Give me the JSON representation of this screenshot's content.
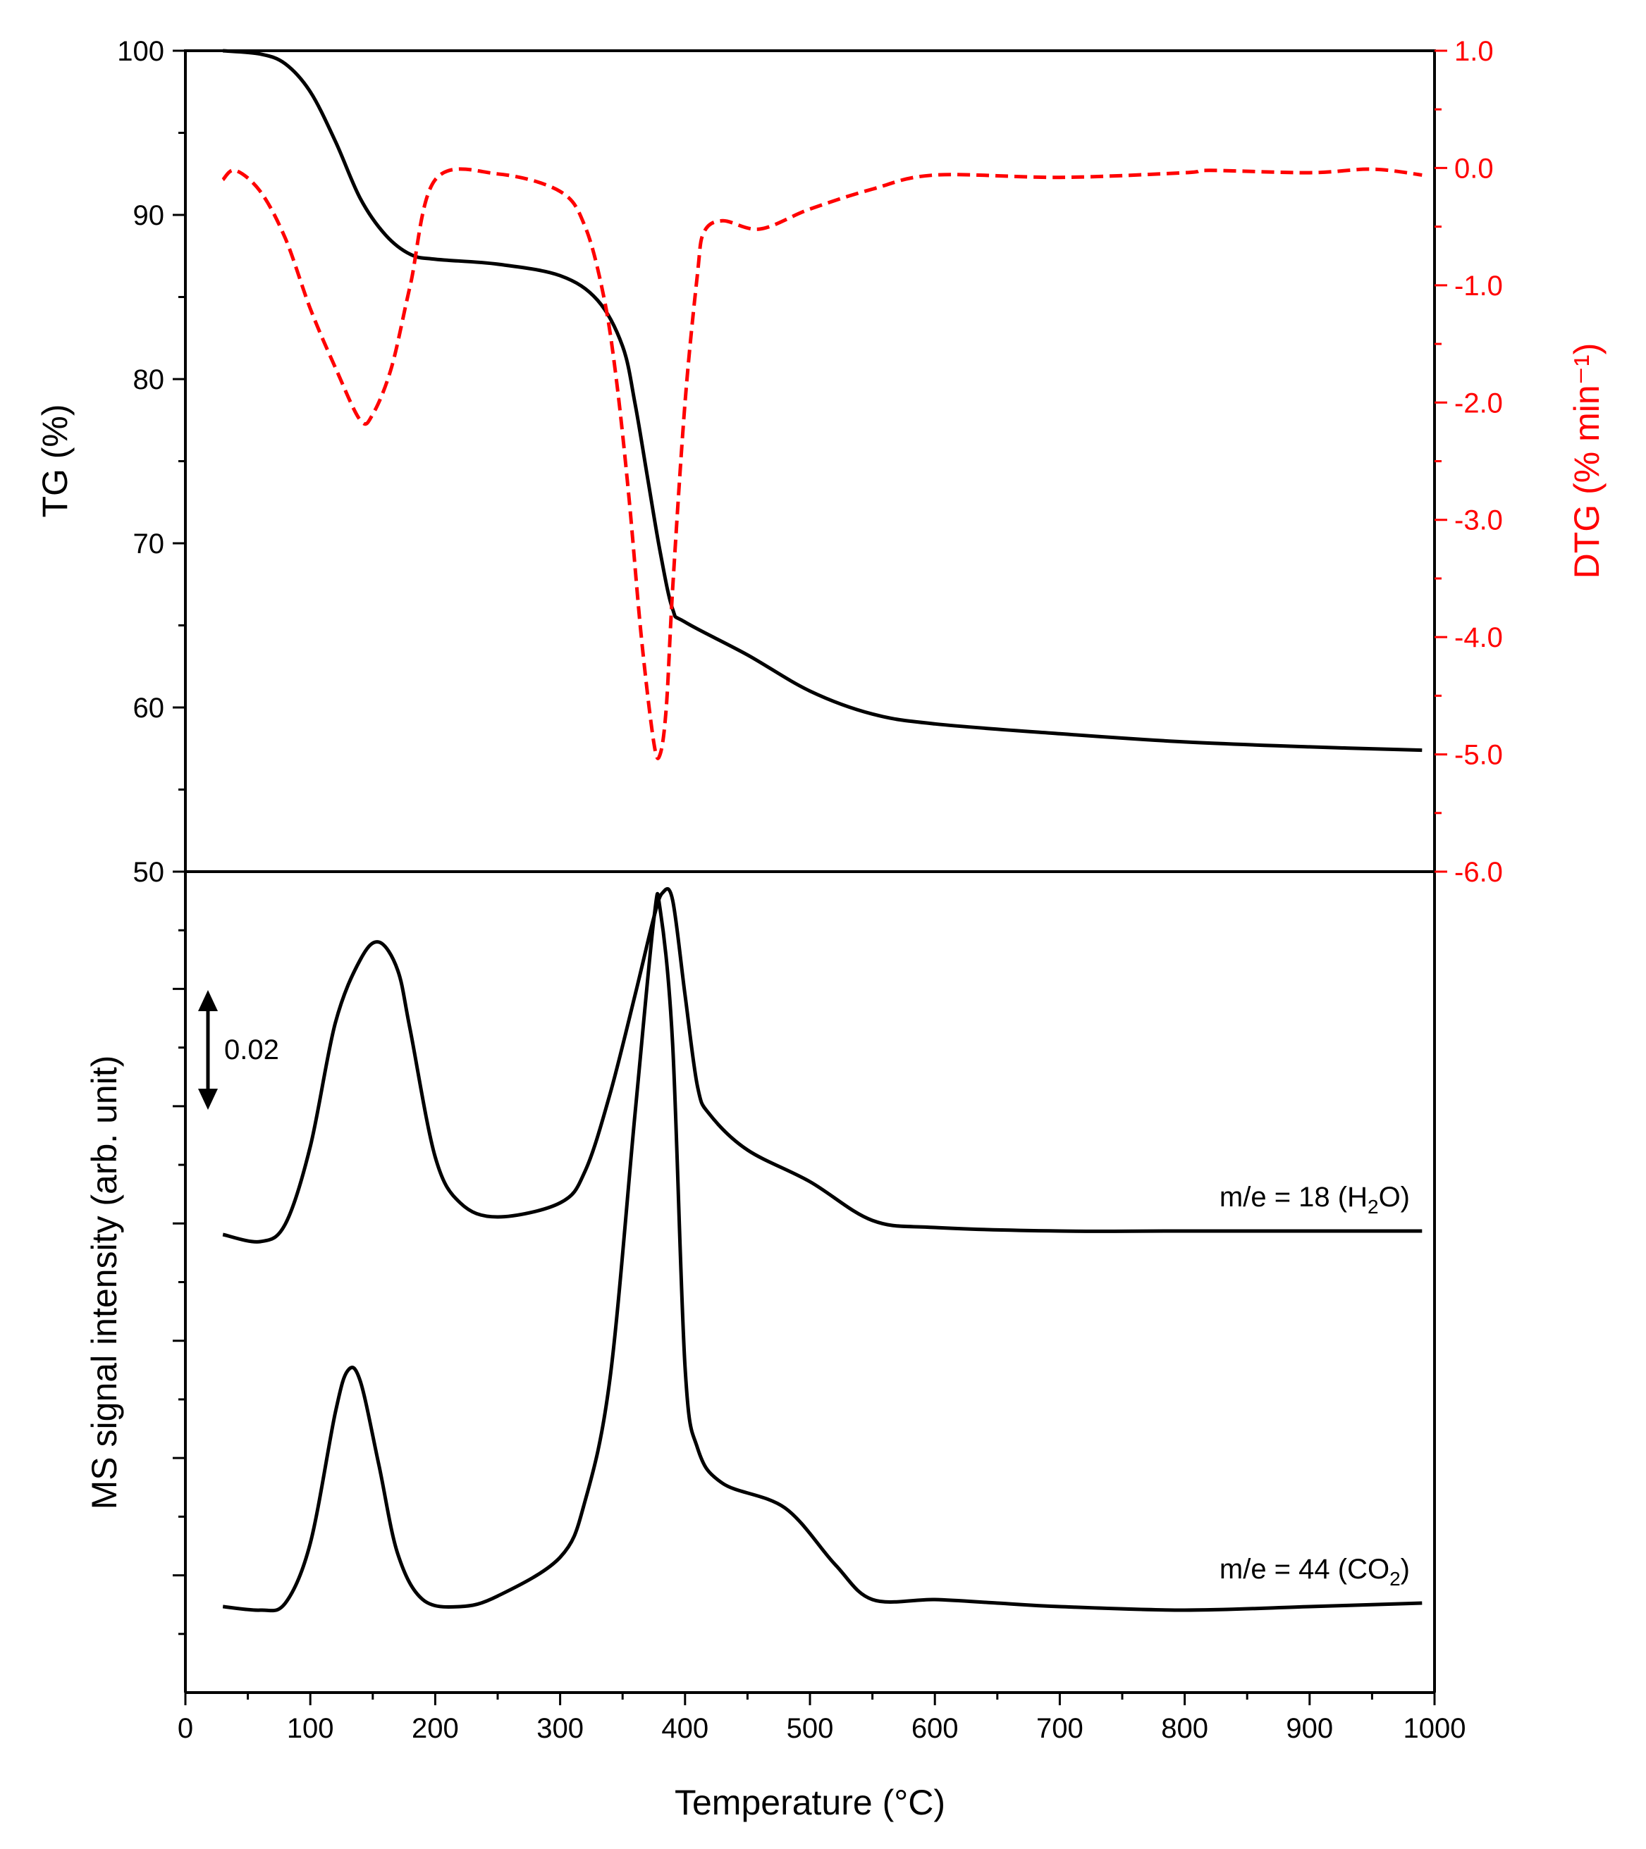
{
  "chart_data": [
    {
      "panel": "top",
      "type": "line",
      "xlabel": "Temperature (°C)",
      "ylabel_left": "TG (%)",
      "ylabel_right": "DTG (% min⁻¹)",
      "xlim": [
        0,
        1000
      ],
      "ylim_left": [
        50,
        100
      ],
      "ylim_right": [
        -6.0,
        1.0
      ],
      "x_ticks": [
        "0",
        "100",
        "200",
        "300",
        "400",
        "500",
        "600",
        "700",
        "800",
        "900",
        "1000"
      ],
      "y_ticks_left": [
        "50",
        "60",
        "70",
        "80",
        "90",
        "100"
      ],
      "y_ticks_right": [
        "1.0",
        "0.0",
        "-1.0",
        "-2.0",
        "-3.0",
        "-4.0",
        "-5.0",
        "-6.0"
      ],
      "series": [
        {
          "axis": "left",
          "style": "solid",
          "color": "#000000",
          "points": [
            [
              30,
              100
            ],
            [
              60,
              99.8
            ],
            [
              80,
              99.2
            ],
            [
              100,
              97.5
            ],
            [
              120,
              94.5
            ],
            [
              140,
              91
            ],
            [
              160,
              88.8
            ],
            [
              180,
              87.6
            ],
            [
              200,
              87.3
            ],
            [
              250,
              87
            ],
            [
              300,
              86.3
            ],
            [
              330,
              84.8
            ],
            [
              350,
              82
            ],
            [
              360,
              78.5
            ],
            [
              370,
              74
            ],
            [
              380,
              69.5
            ],
            [
              390,
              66
            ],
            [
              400,
              65.2
            ],
            [
              450,
              63.2
            ],
            [
              500,
              61
            ],
            [
              550,
              59.6
            ],
            [
              600,
              59
            ],
            [
              700,
              58.4
            ],
            [
              800,
              57.9
            ],
            [
              900,
              57.6
            ],
            [
              990,
              57.4
            ]
          ]
        },
        {
          "axis": "right",
          "style": "dashed",
          "color": "#ff0000",
          "points": [
            [
              30,
              -0.1
            ],
            [
              40,
              -0.02
            ],
            [
              60,
              -0.2
            ],
            [
              80,
              -0.6
            ],
            [
              100,
              -1.2
            ],
            [
              120,
              -1.7
            ],
            [
              140,
              -2.15
            ],
            [
              150,
              -2.1
            ],
            [
              165,
              -1.7
            ],
            [
              180,
              -1.0
            ],
            [
              200,
              -0.1
            ],
            [
              250,
              -0.05
            ],
            [
              300,
              -0.2
            ],
            [
              320,
              -0.5
            ],
            [
              335,
              -1.1
            ],
            [
              345,
              -1.8
            ],
            [
              355,
              -2.8
            ],
            [
              365,
              -4.0
            ],
            [
              375,
              -4.9
            ],
            [
              380,
              -5.0
            ],
            [
              385,
              -4.6
            ],
            [
              390,
              -3.6
            ],
            [
              400,
              -2.0
            ],
            [
              410,
              -0.9
            ],
            [
              415,
              -0.55
            ],
            [
              430,
              -0.45
            ],
            [
              460,
              -0.52
            ],
            [
              500,
              -0.35
            ],
            [
              550,
              -0.18
            ],
            [
              600,
              -0.06
            ],
            [
              700,
              -0.08
            ],
            [
              800,
              -0.04
            ],
            [
              820,
              -0.02
            ],
            [
              900,
              -0.04
            ],
            [
              950,
              -0.01
            ],
            [
              990,
              -0.06
            ]
          ]
        }
      ]
    },
    {
      "panel": "bottom",
      "type": "line",
      "xlabel": "Temperature (°C)",
      "ylabel": "MS signal intensity (arb. unit)",
      "xlim": [
        0,
        1000
      ],
      "x_ticks": [
        "0",
        "100",
        "200",
        "300",
        "400",
        "500",
        "600",
        "700",
        "800",
        "900",
        "1000"
      ],
      "scale_bar": "0.02",
      "series": [
        {
          "name": "m/e = 18 (H2O)",
          "label_main": "m/e = 18 (H",
          "label_sub": "2",
          "label_end": "O)",
          "color": "#000000",
          "points": [
            [
              30,
              0.0
            ],
            [
              60,
              -0.002
            ],
            [
              80,
              0.003
            ],
            [
              100,
              0.025
            ],
            [
              120,
              0.06
            ],
            [
              140,
              0.078
            ],
            [
              155,
              0.083
            ],
            [
              170,
              0.075
            ],
            [
              180,
              0.058
            ],
            [
              200,
              0.022
            ],
            [
              220,
              0.009
            ],
            [
              250,
              0.005
            ],
            [
              300,
              0.009
            ],
            [
              320,
              0.018
            ],
            [
              340,
              0.04
            ],
            [
              360,
              0.068
            ],
            [
              375,
              0.09
            ],
            [
              382,
              0.097
            ],
            [
              390,
              0.095
            ],
            [
              400,
              0.068
            ],
            [
              410,
              0.042
            ],
            [
              420,
              0.034
            ],
            [
              450,
              0.024
            ],
            [
              500,
              0.015
            ],
            [
              550,
              0.004
            ],
            [
              600,
              0.002
            ],
            [
              700,
              0.001
            ],
            [
              800,
              0.001
            ],
            [
              990,
              0.001
            ]
          ]
        },
        {
          "name": "m/e = 44 (CO2)",
          "label_main": "m/e = 44 (CO",
          "label_sub": "2",
          "label_end": ")",
          "color": "#000000",
          "points": [
            [
              30,
              0.0
            ],
            [
              60,
              -0.001
            ],
            [
              80,
              0.001
            ],
            [
              100,
              0.018
            ],
            [
              120,
              0.055
            ],
            [
              130,
              0.067
            ],
            [
              140,
              0.064
            ],
            [
              155,
              0.04
            ],
            [
              170,
              0.015
            ],
            [
              190,
              0.002
            ],
            [
              220,
              0.0
            ],
            [
              250,
              0.003
            ],
            [
              300,
              0.014
            ],
            [
              320,
              0.03
            ],
            [
              340,
              0.065
            ],
            [
              360,
              0.14
            ],
            [
              375,
              0.195
            ],
            [
              380,
              0.198
            ],
            [
              390,
              0.16
            ],
            [
              400,
              0.068
            ],
            [
              410,
              0.045
            ],
            [
              430,
              0.035
            ],
            [
              480,
              0.028
            ],
            [
              520,
              0.012
            ],
            [
              550,
              0.002
            ],
            [
              600,
              0.002
            ],
            [
              650,
              0.001
            ],
            [
              700,
              0.0
            ],
            [
              800,
              -0.001
            ],
            [
              900,
              0.0
            ],
            [
              990,
              0.001
            ]
          ]
        }
      ]
    }
  ]
}
